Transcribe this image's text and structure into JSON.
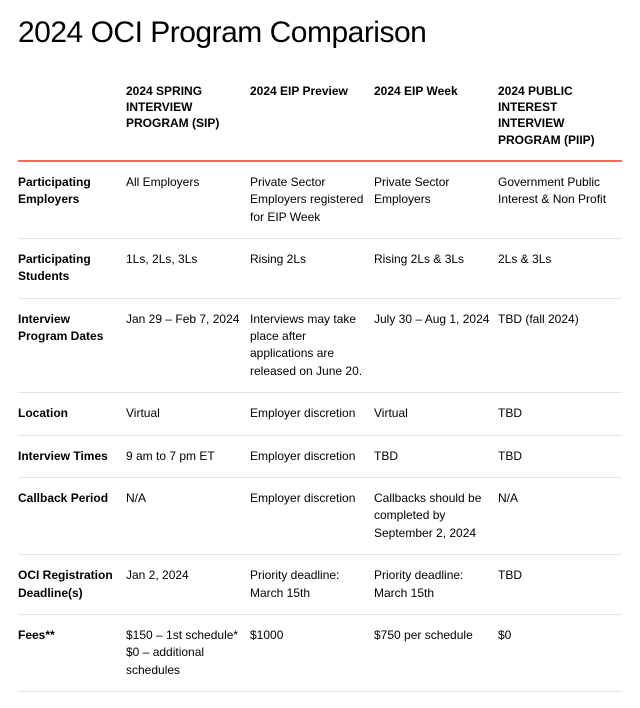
{
  "title": "2024 OCI Program Comparison",
  "colors": {
    "accent": "#f26d5b",
    "rule": "#e5e5e5",
    "bg": "#ffffff",
    "text": "#000000"
  },
  "table": {
    "columns": [
      {
        "key": "sip",
        "label": "2024 SPRING INTERVIEW PROGRAM (SIP)"
      },
      {
        "key": "preview",
        "label": "2024 EIP Preview"
      },
      {
        "key": "week",
        "label": "2024 EIP Week"
      },
      {
        "key": "piip",
        "label": "2024 PUBLIC INTEREST INTERVIEW PROGRAM (PIIP)"
      }
    ],
    "rows": [
      {
        "label": "Participating Employers",
        "cells": [
          "All Employers",
          "Private Sector Employers registered for EIP Week",
          "Private Sector Employers",
          "Government Public Interest & Non Profit"
        ]
      },
      {
        "label": "Participating Students",
        "cells": [
          "1Ls, 2Ls, 3Ls",
          "Rising 2Ls",
          "Rising 2Ls & 3Ls",
          "2Ls & 3Ls"
        ]
      },
      {
        "label": "Interview Program Dates",
        "cells": [
          "Jan 29 – Feb 7, 2024",
          "Interviews may take place after applications are released on June 20.",
          "July 30 – Aug 1, 2024",
          "TBD (fall 2024)"
        ]
      },
      {
        "label": "Location",
        "cells": [
          "Virtual",
          "Employer discretion",
          "Virtual",
          "TBD"
        ]
      },
      {
        "label": "Interview Times",
        "cells": [
          "9 am to 7 pm ET",
          "Employer discretion",
          "TBD",
          "TBD"
        ]
      },
      {
        "label": "Callback Period",
        "cells": [
          "N/A",
          "Employer discretion",
          "Callbacks should be completed by September 2, 2024",
          "N/A"
        ]
      },
      {
        "label": "OCI Registration Deadline(s)",
        "cells": [
          "Jan 2, 2024",
          "Priority deadline: March 15th",
          "Priority deadline: March 15th",
          "TBD"
        ]
      },
      {
        "label": "Fees**",
        "cells": [
          "$150 – 1st schedule*\n$0 – additional schedules",
          "$1000",
          "$750 per schedule",
          "$0"
        ]
      }
    ]
  }
}
